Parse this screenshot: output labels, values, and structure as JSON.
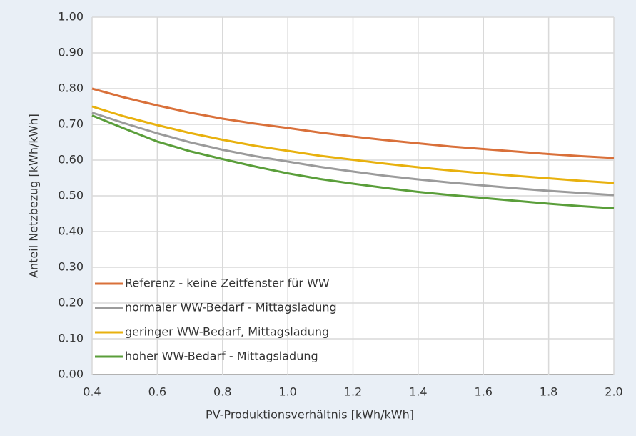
{
  "chart_data": {
    "type": "line",
    "xlabel": "PV-Produktionsverhältnis [kWh/kWh]",
    "ylabel": "Anteil Netzbezug [kWh/kWh]",
    "x": [
      0.4,
      0.5,
      0.6,
      0.7,
      0.8,
      0.9,
      1.0,
      1.1,
      1.2,
      1.3,
      1.4,
      1.5,
      1.6,
      1.7,
      1.8,
      1.9,
      2.0
    ],
    "series": [
      {
        "name": "Referenz - keine Zeitfenster für WW",
        "color": "#d9703a",
        "values": [
          0.8,
          0.775,
          0.753,
          0.733,
          0.716,
          0.702,
          0.69,
          0.677,
          0.666,
          0.656,
          0.647,
          0.638,
          0.631,
          0.624,
          0.617,
          0.611,
          0.606
        ]
      },
      {
        "name": "normaler WW-Bedarf - Mittagsladung",
        "color": "#9b9b9b",
        "values": [
          0.733,
          0.703,
          0.675,
          0.65,
          0.629,
          0.611,
          0.596,
          0.581,
          0.568,
          0.556,
          0.546,
          0.537,
          0.529,
          0.521,
          0.514,
          0.508,
          0.502
        ]
      },
      {
        "name": "geringer WW-Bedarf, Mittagsladung",
        "color": "#e8b10e",
        "values": [
          0.75,
          0.722,
          0.698,
          0.676,
          0.657,
          0.64,
          0.626,
          0.612,
          0.601,
          0.59,
          0.58,
          0.571,
          0.563,
          0.556,
          0.549,
          0.542,
          0.536
        ]
      },
      {
        "name": "hoher WW-Bedarf - Mittagsladung",
        "color": "#5a9e3a",
        "values": [
          0.725,
          0.688,
          0.652,
          0.625,
          0.603,
          0.582,
          0.563,
          0.547,
          0.534,
          0.522,
          0.511,
          0.502,
          0.494,
          0.486,
          0.478,
          0.471,
          0.465
        ]
      }
    ],
    "xlim": [
      0.4,
      2.0
    ],
    "xticks": [
      0.4,
      0.6,
      0.8,
      {
        "value": 1.0,
        "label": "1.0"
      },
      1.2,
      1.4,
      1.6,
      1.8,
      {
        "value": 2.0,
        "label": "2.0"
      }
    ],
    "ylim": [
      0,
      1
    ],
    "yticks": [
      {
        "value": 0,
        "label": "0.00"
      },
      {
        "value": 0.1,
        "label": "0.10"
      },
      {
        "value": 0.2,
        "label": "0.20"
      },
      {
        "value": 0.3,
        "label": "0.30"
      },
      {
        "value": 0.4,
        "label": "0.40"
      },
      {
        "value": 0.5,
        "label": "0.50"
      },
      {
        "value": 0.6,
        "label": "0.60"
      },
      {
        "value": 0.7,
        "label": "0.70"
      },
      {
        "value": 0.8,
        "label": "0.80"
      },
      {
        "value": 0.9,
        "label": "0.90"
      },
      {
        "value": 1,
        "label": "1.00"
      }
    ],
    "grid": true,
    "legend": "lower left"
  }
}
